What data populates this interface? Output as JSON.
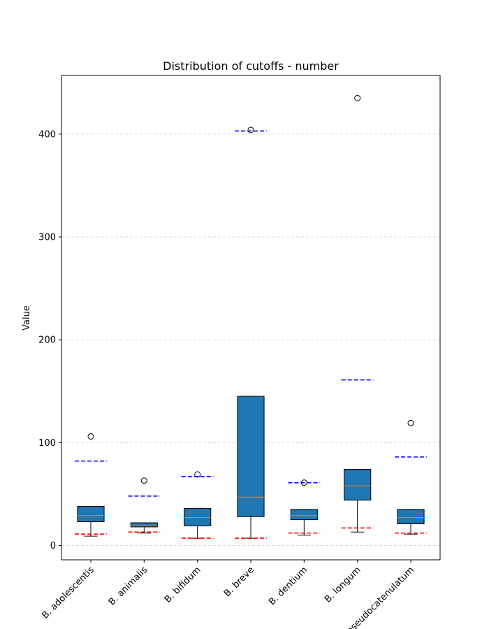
{
  "chart_data": {
    "type": "box",
    "title": "Distribution of cutoffs - number",
    "xlabel": "",
    "ylabel": "Value",
    "ylim": [
      -14,
      457
    ],
    "yticks": [
      0,
      100,
      200,
      300,
      400
    ],
    "grid": "y-dashed",
    "colors": {
      "box_fill": "#1f77b4",
      "median": "#ff7f0e",
      "upper_cutoff": "#0000ff",
      "lower_cutoff": "#ff0000"
    },
    "categories": [
      "B. adolescentis",
      "B. animalis",
      "B. bifidum",
      "B. breve",
      "B. dentium",
      "B. longum",
      "B. pseudocatenulatum"
    ],
    "boxes": [
      {
        "q1": 23,
        "median": 29,
        "q3": 38,
        "whisker_low": 9,
        "whisker_high": 38,
        "outliers": [
          106
        ],
        "upper_cutoff": 82,
        "lower_cutoff": 11
      },
      {
        "q1": 18,
        "median": 19,
        "q3": 22,
        "whisker_low": 12,
        "whisker_high": 22,
        "outliers": [
          63
        ],
        "upper_cutoff": 48,
        "lower_cutoff": 13
      },
      {
        "q1": 19,
        "median": 27,
        "q3": 36,
        "whisker_low": 7,
        "whisker_high": 36,
        "outliers": [
          69
        ],
        "upper_cutoff": 67,
        "lower_cutoff": 7
      },
      {
        "q1": 28,
        "median": 47,
        "q3": 145,
        "whisker_low": 7,
        "whisker_high": 145,
        "outliers": [
          404
        ],
        "upper_cutoff": 403,
        "lower_cutoff": 7
      },
      {
        "q1": 25,
        "median": 29,
        "q3": 35,
        "whisker_low": 10,
        "whisker_high": 35,
        "outliers": [
          61
        ],
        "upper_cutoff": 61,
        "lower_cutoff": 12
      },
      {
        "q1": 44,
        "median": 58,
        "q3": 74,
        "whisker_low": 13,
        "whisker_high": 74,
        "outliers": [
          435
        ],
        "upper_cutoff": 161,
        "lower_cutoff": 17
      },
      {
        "q1": 21,
        "median": 27,
        "q3": 35,
        "whisker_low": 11,
        "whisker_high": 35,
        "outliers": [
          119
        ],
        "upper_cutoff": 86,
        "lower_cutoff": 12
      }
    ]
  }
}
